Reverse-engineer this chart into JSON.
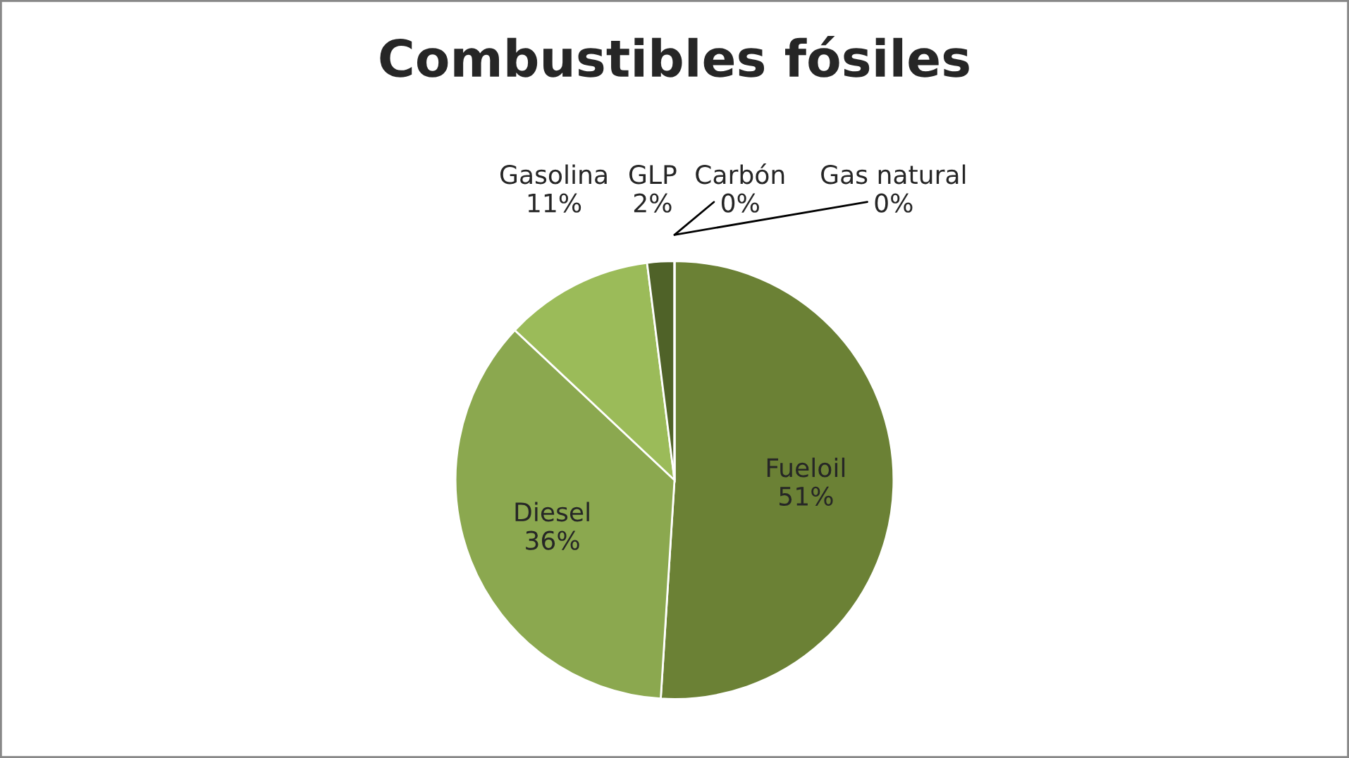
{
  "chart_data": {
    "type": "pie",
    "title": "Combustibles fósiles",
    "categories": [
      "Fueloil",
      "Diesel",
      "Gasolina",
      "GLP",
      "Carbón",
      "Gas natural"
    ],
    "values": [
      51,
      36,
      11,
      2,
      0,
      0
    ],
    "value_labels": [
      "51%",
      "36%",
      "11%",
      "2%",
      "0%",
      "0%"
    ],
    "colors": [
      "#6b8135",
      "#8ba84f",
      "#9bbb59",
      "#4f6228",
      "#b3c98a",
      "#c4d79b"
    ],
    "legend": false
  }
}
